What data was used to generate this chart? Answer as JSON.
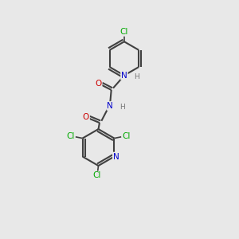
{
  "background_color": "#e8e8e8",
  "atom_colors": {
    "C": "#000000",
    "N": "#0000cc",
    "O": "#cc0000",
    "Cl": "#00aa00",
    "H": "#777777"
  },
  "bond_color": "#404040",
  "figsize": [
    3.0,
    3.0
  ],
  "dpi": 100,
  "xlim": [
    0,
    10
  ],
  "ylim": [
    0,
    10
  ]
}
